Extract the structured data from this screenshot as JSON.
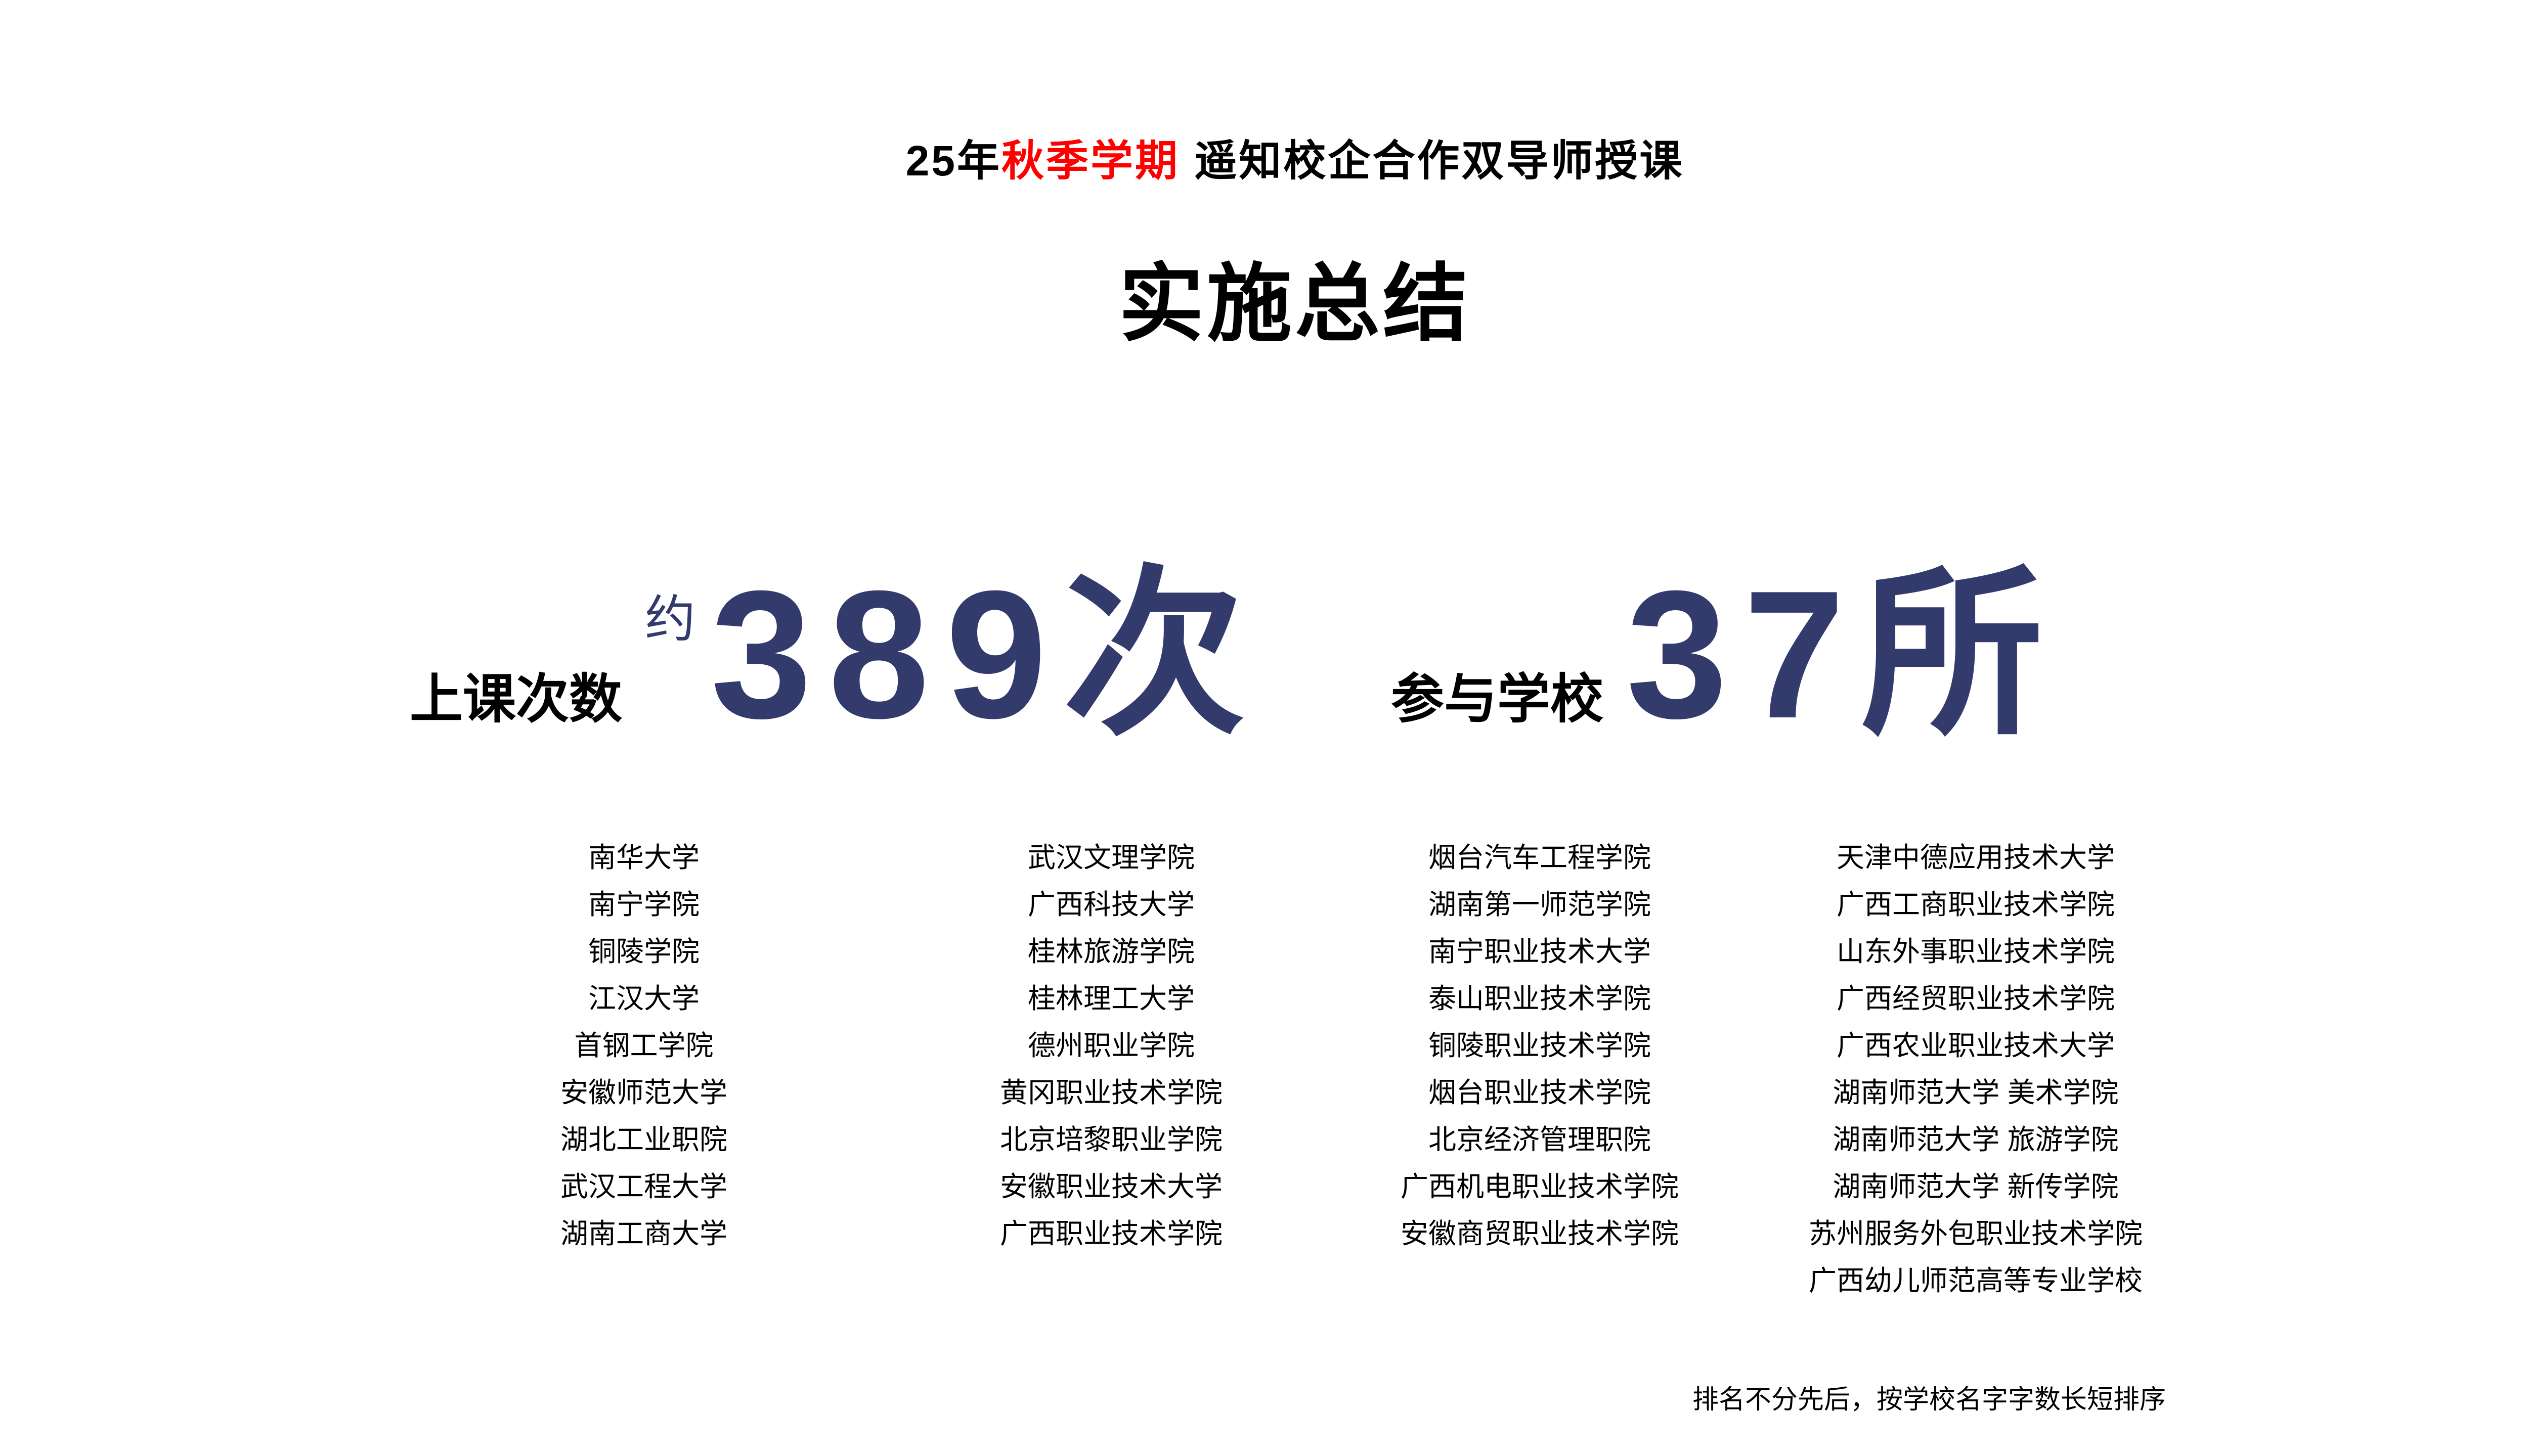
{
  "slide": {
    "title": {
      "year_prefix": "25年",
      "term_highlight": "秋季学期",
      "rest": "遥知校企合作双导师授课"
    },
    "subtitle": "实施总结",
    "stats": [
      {
        "label": "上课次数",
        "approx_prefix": "约",
        "value": "389",
        "unit": "次"
      },
      {
        "label": "参与学校",
        "approx_prefix": "",
        "value": "37",
        "unit": "所"
      }
    ],
    "school_columns": [
      [
        "南华大学",
        "南宁学院",
        "铜陵学院",
        "江汉大学",
        "首钢工学院",
        "安徽师范大学",
        "湖北工业职院",
        "武汉工程大学",
        "湖南工商大学"
      ],
      [
        "武汉文理学院",
        "广西科技大学",
        "桂林旅游学院",
        "桂林理工大学",
        "德州职业学院",
        "黄冈职业技术学院",
        "北京培黎职业学院",
        "安徽职业技术大学",
        "广西职业技术学院"
      ],
      [
        "烟台汽车工程学院",
        "湖南第一师范学院",
        "南宁职业技术大学",
        "泰山职业技术学院",
        "铜陵职业技术学院",
        "烟台职业技术学院",
        "北京经济管理职院",
        "广西机电职业技术学院",
        "安徽商贸职业技术学院"
      ],
      [
        "天津中德应用技术大学",
        "广西工商职业技术学院",
        "山东外事职业技术学院",
        "广西经贸职业技术学院",
        "广西农业职业技术大学",
        "湖南师范大学 美术学院",
        "湖南师范大学 旅游学院",
        "湖南师范大学 新传学院",
        "苏州服务外包职业技术学院",
        "广西幼儿师范高等专业学校"
      ]
    ],
    "footnote": "排名不分先后，按学校名字字数长短排序",
    "colors": {
      "stat_number_navy": "#333a6c",
      "title_highlight_red": "#ff0000",
      "text_black": "#000000"
    }
  }
}
